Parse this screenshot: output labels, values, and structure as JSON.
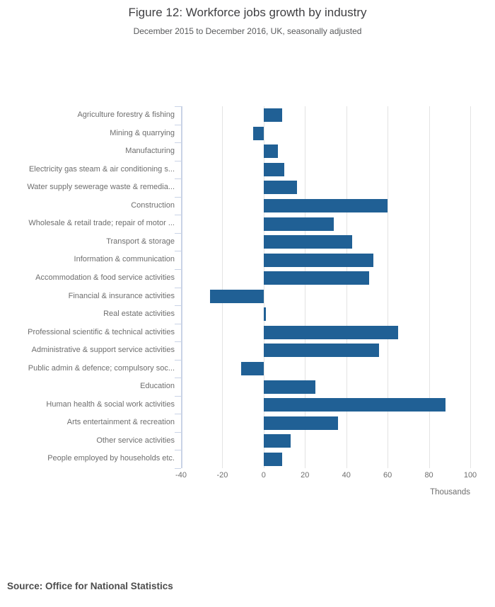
{
  "header": {
    "title": "Figure 12: Workforce jobs growth by industry",
    "subtitle": "December 2015 to December 2016, UK, seasonally adjusted"
  },
  "footer": {
    "source": "Source: Office for National Statistics"
  },
  "chart_data": {
    "type": "bar",
    "orientation": "horizontal",
    "title": "Figure 12: Workforce jobs growth by industry",
    "subtitle": "December 2015 to December 2016, UK, seasonally adjusted",
    "xlabel": "Thousands",
    "ylabel": "",
    "xlim": [
      -40,
      100
    ],
    "x_ticks": [
      -40,
      -20,
      0,
      20,
      40,
      60,
      80,
      100
    ],
    "grid": true,
    "legend_position": "none",
    "bar_color": "#206095",
    "axis_color": "#c9d3e6",
    "gridline_color": "#e3e3e3",
    "categories": [
      "Agriculture forestry & fishing",
      "Mining & quarrying",
      "Manufacturing",
      "Electricity gas steam & air conditioning s...",
      "Water supply sewerage waste & remedia...",
      "Construction",
      "Wholesale & retail trade; repair of motor ...",
      "Transport & storage",
      "Information & communication",
      "Accommodation & food service activities",
      "Financial & insurance activities",
      "Real estate activities",
      "Professional scientific & technical activities",
      "Administrative & support service activities",
      "Public admin & defence; compulsory soc...",
      "Education",
      "Human health & social work activities",
      "Arts entertainment & recreation",
      "Other service activities",
      "People employed by households etc."
    ],
    "values": [
      9,
      -5,
      7,
      10,
      16,
      60,
      34,
      43,
      53,
      51,
      -26,
      1,
      65,
      56,
      -11,
      25,
      88,
      36,
      13,
      9
    ]
  }
}
